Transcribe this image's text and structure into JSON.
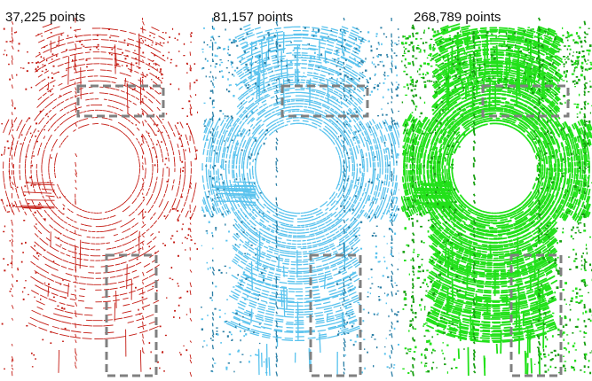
{
  "panels": [
    {
      "label": "37,225 points",
      "color": "#c41a12",
      "density": "sparse"
    },
    {
      "label": "81,157 points",
      "color": "#5ac3ee",
      "dark": "#2b7fa6",
      "density": "medium"
    },
    {
      "label": "268,789 points",
      "color": "#22e11a",
      "dark": "#169f10",
      "density": "dense"
    }
  ],
  "highlight_box_color": "#808080"
}
